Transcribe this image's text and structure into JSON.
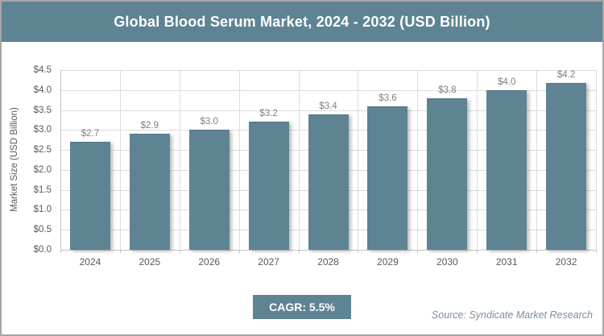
{
  "header": {
    "title": "Global Blood Serum Market, 2024 - 2032 (USD Billion)"
  },
  "chart_data": {
    "type": "bar",
    "title": "Global Blood Serum Market, 2024 - 2032 (USD Billion)",
    "categories": [
      "2024",
      "2025",
      "2026",
      "2027",
      "2028",
      "2029",
      "2030",
      "2031",
      "2032"
    ],
    "values": [
      2.7,
      2.9,
      3.0,
      3.2,
      3.4,
      3.6,
      3.8,
      4.0,
      4.2
    ],
    "bar_labels": [
      "$2.7",
      "$2.9",
      "$3.0",
      "$3.2",
      "$3.4",
      "$3.6",
      "$3.8",
      "$4.0",
      "$4.2"
    ],
    "xlabel": "",
    "ylabel": "Market Size (USD Billion)",
    "ylim": [
      0,
      4.5
    ],
    "ytick_step": 0.5,
    "ytick_labels": [
      "$0.0",
      "$0.5",
      "$1.0",
      "$1.5",
      "$2.0",
      "$2.5",
      "$3.0",
      "$3.5",
      "$4.0",
      "$4.5"
    ],
    "grid": true,
    "legend": "none"
  },
  "footer": {
    "cagr_label": "CAGR: 5.5%",
    "source_text": "Source: Syndicate Market Research"
  },
  "theme": {
    "accent": "#5e8494",
    "header_text": "#ffffff",
    "background": "#ffffff",
    "frame_border": "#a6a6a6",
    "gridline": "#dcdcdc",
    "axis_line": "#c3c3c3",
    "data_label": "#7f7f7f",
    "tick_label": "#595959",
    "source_text": "#7f8e9d"
  }
}
